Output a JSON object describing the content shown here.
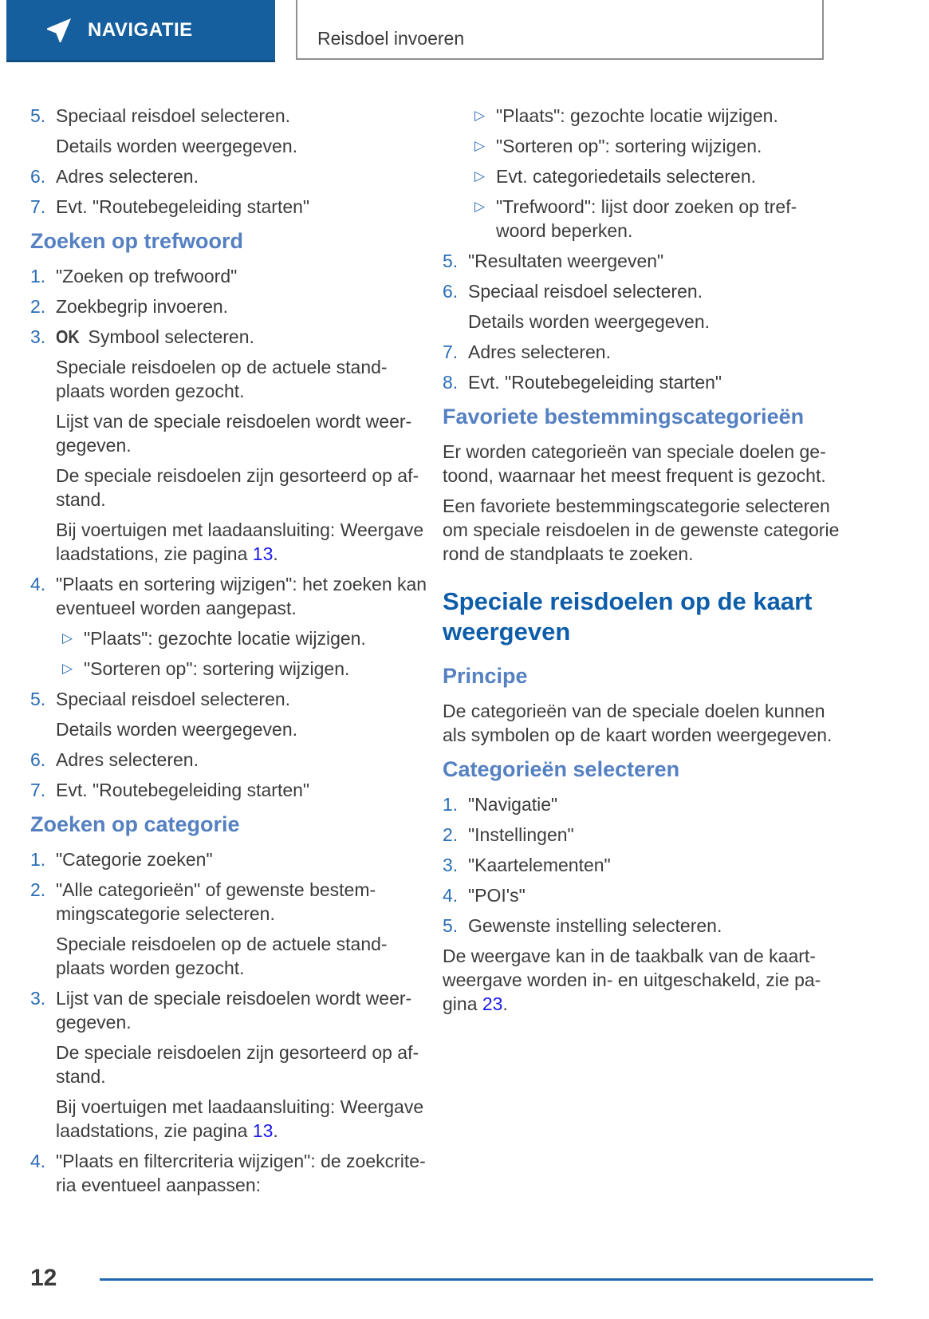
{
  "header": {
    "section_label": "NAVIGATIE",
    "chapter_title": "Reisdoel invoeren"
  },
  "footer": {
    "page_number": "12"
  },
  "icons": {
    "navigation_arrow": "location-arrow",
    "triangle_bullet": "▷"
  },
  "colors": {
    "banner_blue": "#155f9e",
    "number_blue": "#2a6db5",
    "subheading_blue": "#5580c1",
    "section_heading_blue": "#0d5da9",
    "link_blue": "#1a1ae8",
    "footer_rule_blue": "#2268ad",
    "body_text": "#3c3c3c"
  },
  "columns": {
    "left": {
      "blocks": [
        {
          "type": "item",
          "num": "5.",
          "text": "Speciaal reisdoel selecteren."
        },
        {
          "type": "note",
          "text": "Details worden weergegeven."
        },
        {
          "type": "item",
          "num": "6.",
          "text": "Adres selecteren."
        },
        {
          "type": "item",
          "num": "7.",
          "text": "Evt. \"Routebegeleiding starten\""
        },
        {
          "type": "h3",
          "text": "Zoeken op trefwoord"
        },
        {
          "type": "item",
          "num": "1.",
          "text": "\"Zoeken op trefwoord\""
        },
        {
          "type": "item",
          "num": "2.",
          "text": "Zoekbegrip invoeren."
        },
        {
          "type": "item",
          "num": "3.",
          "symbol": "OK",
          "text": "Symbool selecteren."
        },
        {
          "type": "note",
          "text": "Speciale reisdoelen op de actuele stand-\nplaats worden gezocht."
        },
        {
          "type": "note",
          "text": "Lijst van de speciale reisdoelen wordt weer-\ngegeven."
        },
        {
          "type": "note",
          "text": "De speciale reisdoelen zijn gesorteerd op af-\nstand."
        },
        {
          "type": "note",
          "segments": [
            {
              "text": "Bij voertuigen met laadaansluiting: Weergave\nlaadstations, zie pagina "
            },
            {
              "text": "13",
              "link": true
            },
            {
              "text": "."
            }
          ]
        },
        {
          "type": "item",
          "num": "4.",
          "text": "\"Plaats en sortering wijzigen\": het zoeken kan\neventueel worden aangepast."
        },
        {
          "type": "bullet",
          "text": "\"Plaats\": gezochte locatie wijzigen."
        },
        {
          "type": "bullet",
          "text": "\"Sorteren op\": sortering wijzigen."
        },
        {
          "type": "item",
          "num": "5.",
          "text": "Speciaal reisdoel selecteren."
        },
        {
          "type": "note",
          "text": "Details worden weergegeven."
        },
        {
          "type": "item",
          "num": "6.",
          "text": "Adres selecteren."
        },
        {
          "type": "item",
          "num": "7.",
          "text": "Evt. \"Routebegeleiding starten\""
        },
        {
          "type": "h3",
          "text": "Zoeken op categorie"
        },
        {
          "type": "item",
          "num": "1.",
          "text": "\"Categorie zoeken\""
        },
        {
          "type": "item",
          "num": "2.",
          "text": "\"Alle categorieën\" of gewenste bestem-\nmingscategorie selecteren."
        },
        {
          "type": "note",
          "text": "Speciale reisdoelen op de actuele stand-\nplaats worden gezocht."
        },
        {
          "type": "item",
          "num": "3.",
          "text": "Lijst van de speciale reisdoelen wordt weer-\ngegeven."
        },
        {
          "type": "note",
          "text": "De speciale reisdoelen zijn gesorteerd op af-\nstand."
        },
        {
          "type": "note",
          "segments": [
            {
              "text": "Bij voertuigen met laadaansluiting: Weergave\nlaadstations, zie pagina "
            },
            {
              "text": "13",
              "link": true
            },
            {
              "text": "."
            }
          ]
        },
        {
          "type": "item",
          "num": "4.",
          "text": "\"Plaats en filtercriteria wijzigen\": de zoekcrite-\nria eventueel aanpassen:"
        }
      ]
    },
    "right": {
      "blocks": [
        {
          "type": "bullet",
          "text": "\"Plaats\": gezochte locatie wijzigen."
        },
        {
          "type": "bullet",
          "text": "\"Sorteren op\": sortering wijzigen."
        },
        {
          "type": "bullet",
          "text": "Evt. categoriedetails selecteren."
        },
        {
          "type": "bullet",
          "text": "\"Trefwoord\": lijst door zoeken op tref-\nwoord beperken."
        },
        {
          "type": "item",
          "num": "5.",
          "text": "\"Resultaten weergeven\""
        },
        {
          "type": "item",
          "num": "6.",
          "text": "Speciaal reisdoel selecteren."
        },
        {
          "type": "note",
          "text": "Details worden weergegeven."
        },
        {
          "type": "item",
          "num": "7.",
          "text": "Adres selecteren."
        },
        {
          "type": "item",
          "num": "8.",
          "text": "Evt. \"Routebegeleiding starten\""
        },
        {
          "type": "h3",
          "text": "Favoriete bestemmingscategorieën"
        },
        {
          "type": "para",
          "text": "Er worden categorieën van speciale doelen ge-\ntoond, waarnaar het meest frequent is gezocht."
        },
        {
          "type": "para",
          "text": "Een favoriete bestemmingscategorie selecteren\nom speciale reisdoelen in de gewenste categorie\nrond de standplaats te zoeken."
        },
        {
          "type": "h1",
          "text": "Speciale reisdoelen op de kaart\nweergeven"
        },
        {
          "type": "h3",
          "text": "Principe"
        },
        {
          "type": "para",
          "text": "De categorieën van de speciale doelen kunnen\nals symbolen op de kaart worden weergegeven."
        },
        {
          "type": "h3",
          "text": "Categorieën selecteren"
        },
        {
          "type": "item",
          "num": "1.",
          "text": "\"Navigatie\""
        },
        {
          "type": "item",
          "num": "2.",
          "text": "\"Instellingen\""
        },
        {
          "type": "item",
          "num": "3.",
          "text": "\"Kaartelementen\""
        },
        {
          "type": "item",
          "num": "4.",
          "text": "\"POI's\""
        },
        {
          "type": "item",
          "num": "5.",
          "text": "Gewenste instelling selecteren."
        },
        {
          "type": "para",
          "segments": [
            {
              "text": "De weergave kan in de taakbalk van de kaart-\nweergave worden in- en uitgeschakeld, zie pa-\ngina "
            },
            {
              "text": "23",
              "link": true
            },
            {
              "text": "."
            }
          ]
        }
      ]
    }
  }
}
